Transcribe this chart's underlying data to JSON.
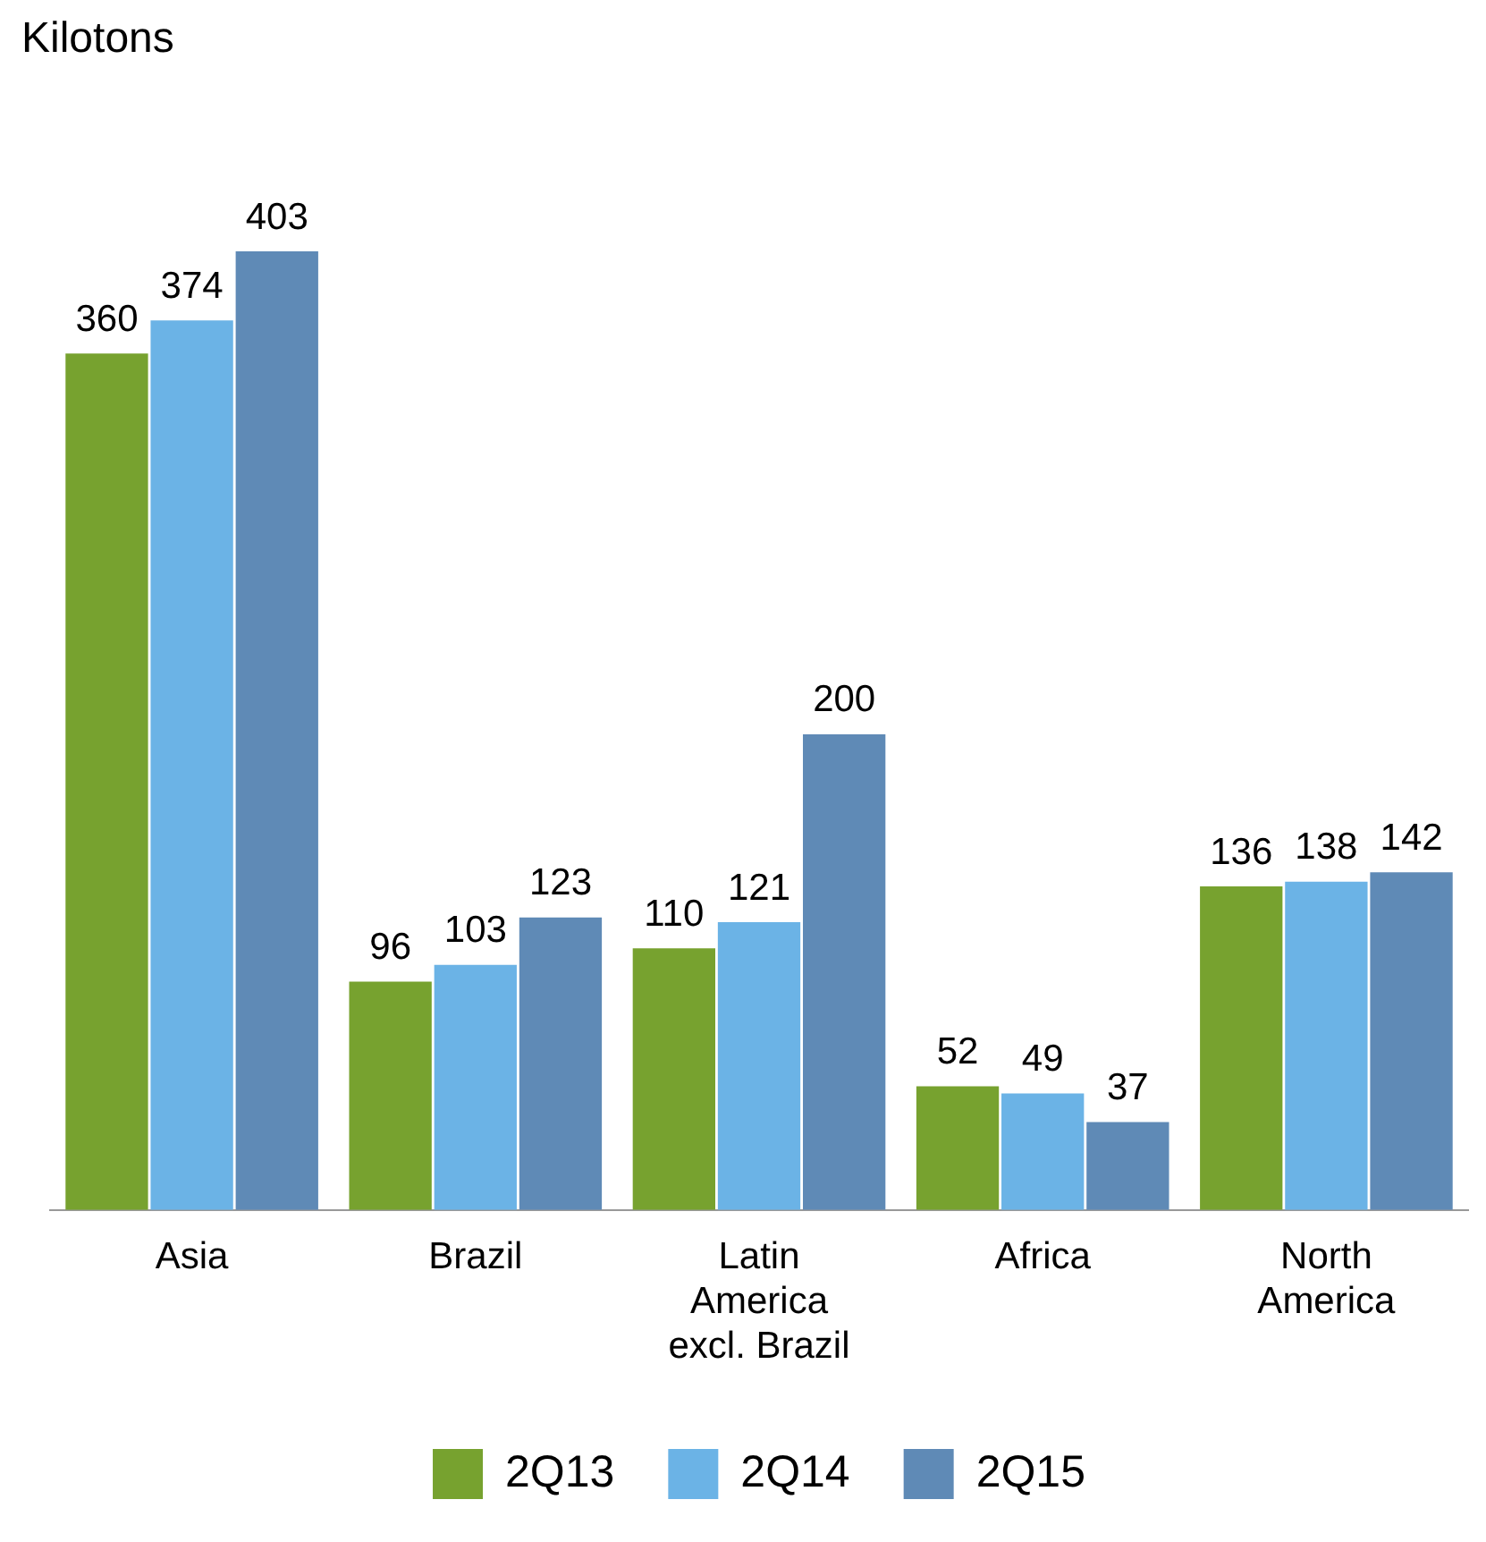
{
  "chart_data": {
    "type": "bar",
    "ylabel": "Kilotons",
    "categories": [
      "Asia",
      "Brazil",
      "Latin America excl. Brazil",
      "Africa",
      "North America"
    ],
    "series": [
      {
        "name": "2Q13",
        "color": "#77a22f",
        "values": [
          360,
          96,
          110,
          52,
          136
        ]
      },
      {
        "name": "2Q14",
        "color": "#6bb3e6",
        "values": [
          374,
          103,
          121,
          49,
          138
        ]
      },
      {
        "name": "2Q15",
        "color": "#5f8ab6",
        "values": [
          403,
          123,
          200,
          37,
          142
        ]
      }
    ],
    "data_labels": true,
    "legend": "bottom",
    "grid": false
  }
}
